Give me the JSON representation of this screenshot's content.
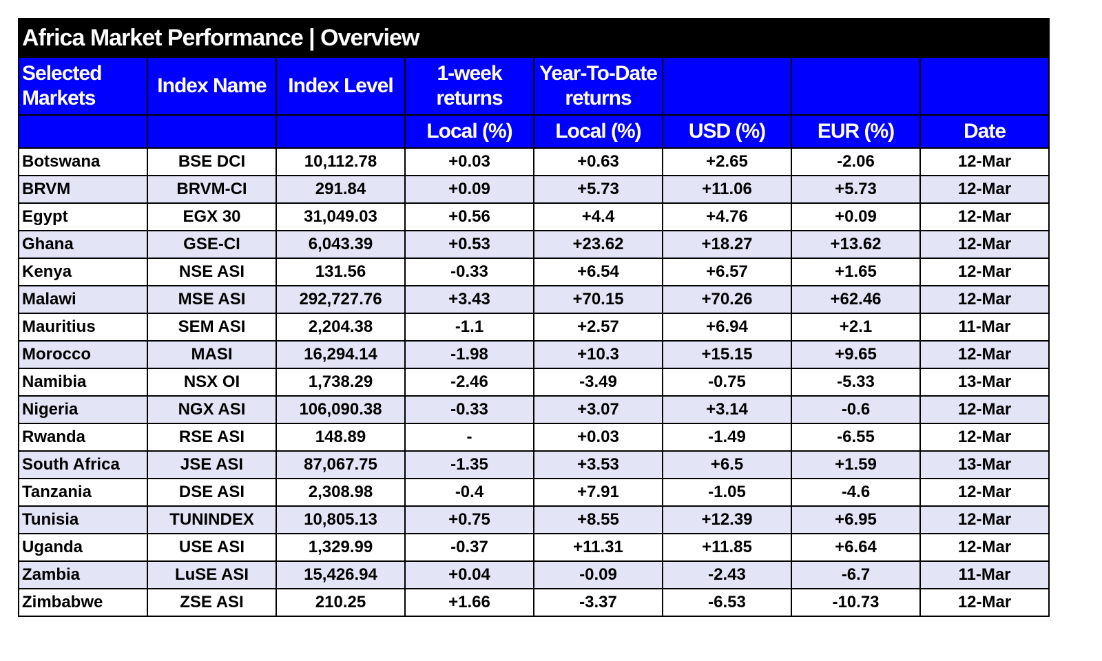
{
  "title": "Africa Market Performance | Overview",
  "header": {
    "top": [
      "Selected Markets",
      "Index Name",
      "Index Level",
      "1-week returns",
      "Year-To-Date returns"
    ],
    "bottom": [
      "Local (%)",
      "Local (%)",
      "USD (%)",
      "EUR (%)",
      "Date"
    ]
  },
  "table": {
    "rows": [
      [
        "Botswana",
        "BSE DCI",
        "10,112.78",
        "+0.03",
        "+0.63",
        "+2.65",
        "-2.06",
        "12-Mar"
      ],
      [
        "BRVM",
        "BRVM-CI",
        "291.84",
        "+0.09",
        "+5.73",
        "+11.06",
        "+5.73",
        "12-Mar"
      ],
      [
        "Egypt",
        "EGX 30",
        "31,049.03",
        "+0.56",
        "+4.4",
        "+4.76",
        "+0.09",
        "12-Mar"
      ],
      [
        "Ghana",
        "GSE-CI",
        "6,043.39",
        "+0.53",
        "+23.62",
        "+18.27",
        "+13.62",
        "12-Mar"
      ],
      [
        "Kenya",
        "NSE ASI",
        "131.56",
        "-0.33",
        "+6.54",
        "+6.57",
        "+1.65",
        "12-Mar"
      ],
      [
        "Malawi",
        "MSE ASI",
        "292,727.76",
        "+3.43",
        "+70.15",
        "+70.26",
        "+62.46",
        "12-Mar"
      ],
      [
        "Mauritius",
        "SEM ASI",
        "2,204.38",
        "-1.1",
        "+2.57",
        "+6.94",
        "+2.1",
        "11-Mar"
      ],
      [
        "Morocco",
        "MASI",
        "16,294.14",
        "-1.98",
        "+10.3",
        "+15.15",
        "+9.65",
        "12-Mar"
      ],
      [
        "Namibia",
        "NSX OI",
        "1,738.29",
        "-2.46",
        "-3.49",
        "-0.75",
        "-5.33",
        "13-Mar"
      ],
      [
        "Nigeria",
        "NGX ASI",
        "106,090.38",
        "-0.33",
        "+3.07",
        "+3.14",
        "-0.6",
        "12-Mar"
      ],
      [
        "Rwanda",
        "RSE ASI",
        "148.89",
        "-",
        "+0.03",
        "-1.49",
        "-6.55",
        "12-Mar"
      ],
      [
        "South Africa",
        "JSE ASI",
        "87,067.75",
        "-1.35",
        "+3.53",
        "+6.5",
        "+1.59",
        "13-Mar"
      ],
      [
        "Tanzania",
        "DSE ASI",
        "2,308.98",
        "-0.4",
        "+7.91",
        "-1.05",
        "-4.6",
        "12-Mar"
      ],
      [
        "Tunisia",
        "TUNINDEX",
        "10,805.13",
        "+0.75",
        "+8.55",
        "+12.39",
        "+6.95",
        "12-Mar"
      ],
      [
        "Uganda",
        "USE ASI",
        "1,329.99",
        "-0.37",
        "+11.31",
        "+11.85",
        "+6.64",
        "12-Mar"
      ],
      [
        "Zambia",
        "LuSE ASI",
        "15,426.94",
        "+0.04",
        "-0.09",
        "-2.43",
        "-6.7",
        "11-Mar"
      ],
      [
        "Zimbabwe",
        "ZSE ASI",
        "210.25",
        "+1.66",
        "-3.37",
        "-6.53",
        "-10.73",
        "12-Mar"
      ]
    ]
  }
}
